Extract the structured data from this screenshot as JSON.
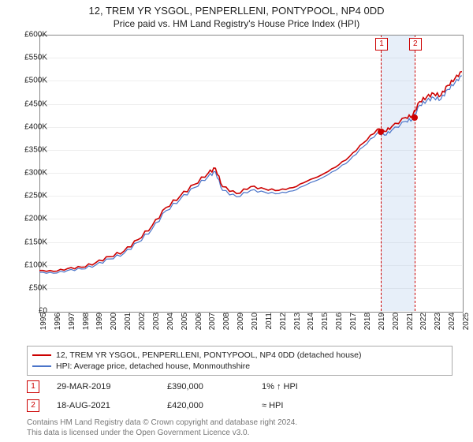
{
  "title": "12, TREM YR YSGOL, PENPERLLENI, PONTYPOOL, NP4 0DD",
  "subtitle": "Price paid vs. HM Land Registry's House Price Index (HPI)",
  "chart": {
    "type": "line",
    "background_color": "#ffffff",
    "grid_color": "#eeeeee",
    "axis_color": "#888888",
    "ylim": [
      0,
      600000
    ],
    "ytick_step": 50000,
    "yticks": [
      "£0",
      "£50K",
      "£100K",
      "£150K",
      "£200K",
      "£250K",
      "£300K",
      "£350K",
      "£400K",
      "£450K",
      "£500K",
      "£550K",
      "£600K"
    ],
    "xlim": [
      1995,
      2025
    ],
    "xticks": [
      1995,
      1996,
      1997,
      1998,
      1999,
      2000,
      2001,
      2002,
      2003,
      2004,
      2005,
      2006,
      2007,
      2008,
      2009,
      2010,
      2011,
      2012,
      2013,
      2014,
      2015,
      2016,
      2017,
      2018,
      2019,
      2020,
      2021,
      2022,
      2023,
      2024,
      2025
    ],
    "label_fontsize": 10,
    "series": [
      {
        "name": "12, TREM YR YSGOL, PENPERLLENI, PONTYPOOL, NP4 0DD (detached house)",
        "color": "#cc0000",
        "line_width": 1.6,
        "data": [
          [
            1995,
            88000
          ],
          [
            1996,
            86000
          ],
          [
            1997,
            92000
          ],
          [
            1998,
            95000
          ],
          [
            1999,
            105000
          ],
          [
            2000,
            118000
          ],
          [
            2001,
            130000
          ],
          [
            2002,
            155000
          ],
          [
            2003,
            185000
          ],
          [
            2004,
            225000
          ],
          [
            2005,
            250000
          ],
          [
            2006,
            275000
          ],
          [
            2007,
            300000
          ],
          [
            2007.5,
            310000
          ],
          [
            2008,
            270000
          ],
          [
            2009,
            255000
          ],
          [
            2010,
            270000
          ],
          [
            2011,
            265000
          ],
          [
            2012,
            262000
          ],
          [
            2013,
            268000
          ],
          [
            2014,
            282000
          ],
          [
            2015,
            295000
          ],
          [
            2016,
            312000
          ],
          [
            2017,
            335000
          ],
          [
            2018,
            365000
          ],
          [
            2019,
            395000
          ],
          [
            2019.5,
            390000
          ],
          [
            2020,
            400000
          ],
          [
            2021,
            420000
          ],
          [
            2021.5,
            425000
          ],
          [
            2022,
            455000
          ],
          [
            2022.5,
            465000
          ],
          [
            2023,
            472000
          ],
          [
            2023.5,
            468000
          ],
          [
            2024,
            490000
          ],
          [
            2024.5,
            505000
          ],
          [
            2025,
            520000
          ]
        ]
      },
      {
        "name": "HPI: Average price, detached house, Monmouthshire",
        "color": "#4a74c9",
        "line_width": 1.2,
        "data": [
          [
            1995,
            84000
          ],
          [
            1996,
            82000
          ],
          [
            1997,
            88000
          ],
          [
            1998,
            91000
          ],
          [
            1999,
            100000
          ],
          [
            2000,
            113000
          ],
          [
            2001,
            125000
          ],
          [
            2002,
            149000
          ],
          [
            2003,
            178000
          ],
          [
            2004,
            218000
          ],
          [
            2005,
            243000
          ],
          [
            2006,
            268000
          ],
          [
            2007,
            293000
          ],
          [
            2007.5,
            302000
          ],
          [
            2008,
            262000
          ],
          [
            2009,
            248000
          ],
          [
            2010,
            262000
          ],
          [
            2011,
            258000
          ],
          [
            2012,
            255000
          ],
          [
            2013,
            261000
          ],
          [
            2014,
            275000
          ],
          [
            2015,
            288000
          ],
          [
            2016,
            305000
          ],
          [
            2017,
            327000
          ],
          [
            2018,
            357000
          ],
          [
            2019,
            387000
          ],
          [
            2019.5,
            382000
          ],
          [
            2020,
            392000
          ],
          [
            2021,
            412000
          ],
          [
            2021.5,
            417000
          ],
          [
            2022,
            447000
          ],
          [
            2022.5,
            457000
          ],
          [
            2023,
            463000
          ],
          [
            2023.5,
            460000
          ],
          [
            2024,
            481000
          ],
          [
            2024.5,
            496000
          ],
          [
            2025,
            511000
          ]
        ]
      }
    ],
    "sale_markers": [
      {
        "n": "1",
        "x": 2019.24,
        "y": 390000,
        "color": "#cc0000"
      },
      {
        "n": "2",
        "x": 2021.63,
        "y": 420000,
        "color": "#cc0000"
      }
    ],
    "band_color": "rgba(160,190,230,0.25)"
  },
  "legend": {
    "border_color": "#aaaaaa",
    "items": [
      {
        "color": "#cc0000",
        "label": "12, TREM YR YSGOL, PENPERLLENI, PONTYPOOL, NP4 0DD (detached house)"
      },
      {
        "color": "#4a74c9",
        "label": "HPI: Average price, detached house, Monmouthshire"
      }
    ]
  },
  "sales": [
    {
      "n": "1",
      "date": "29-MAR-2019",
      "price": "£390,000",
      "vs": "1% ↑ HPI"
    },
    {
      "n": "2",
      "date": "18-AUG-2021",
      "price": "£420,000",
      "vs": "≈ HPI"
    }
  ],
  "footnote_line1": "Contains HM Land Registry data © Crown copyright and database right 2024.",
  "footnote_line2": "This data is licensed under the Open Government Licence v3.0."
}
